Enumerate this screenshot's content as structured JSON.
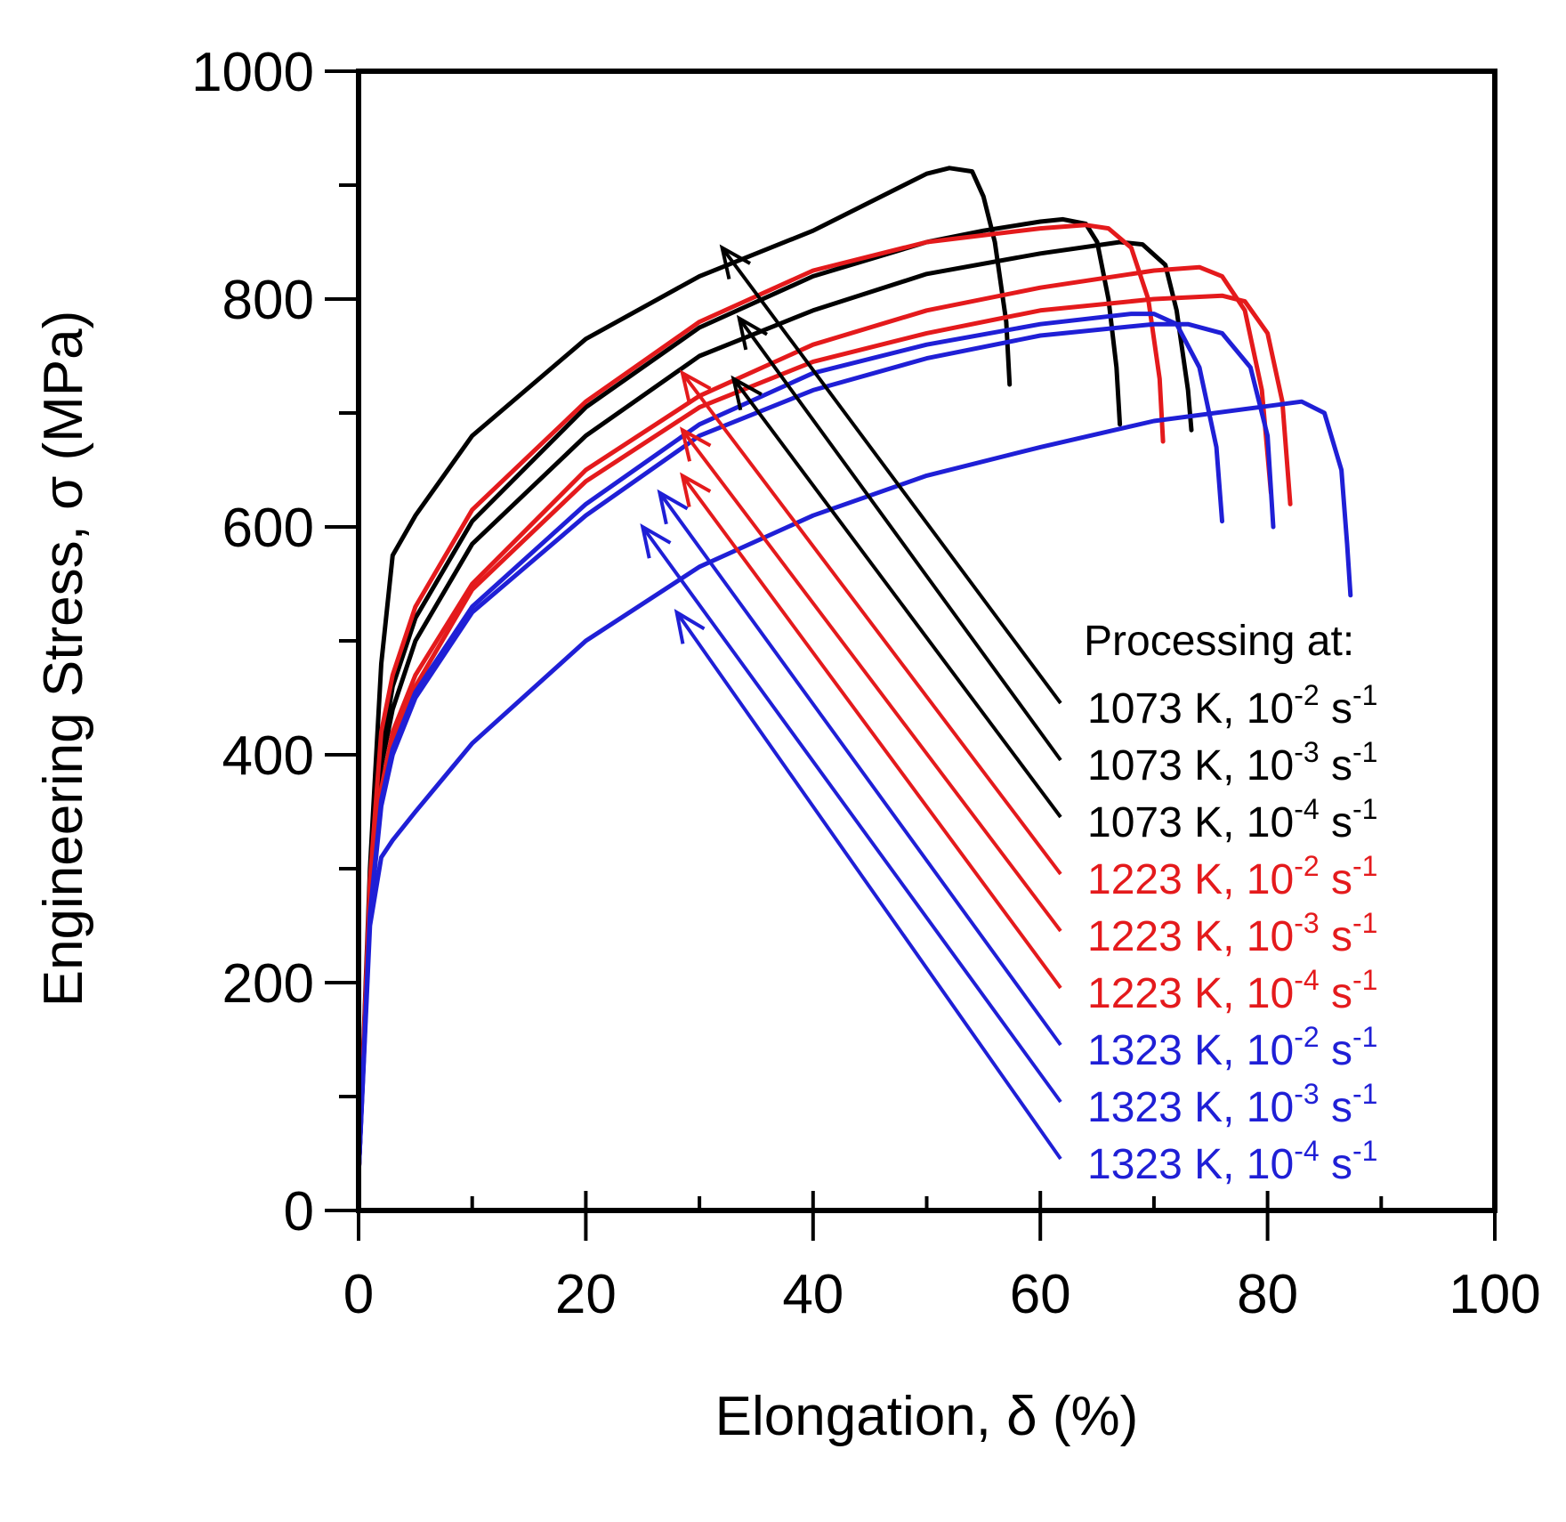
{
  "chart_data": {
    "type": "line",
    "title": "",
    "xlabel": "Elongation, δ (%)",
    "ylabel": "Engineering Stress, σ (MPa)",
    "xlim": [
      0,
      100
    ],
    "ylim": [
      0,
      1000
    ],
    "xticks": [
      0,
      20,
      40,
      60,
      80,
      100
    ],
    "yticks": [
      0,
      200,
      400,
      600,
      800,
      1000
    ],
    "xtick_labels": [
      "0",
      "20",
      "40",
      "60",
      "80",
      "100"
    ],
    "ytick_labels": [
      "0",
      "200",
      "400",
      "600",
      "800",
      "1000"
    ],
    "grid": false,
    "legend_title": "Processing at:",
    "legend_position": "right-center",
    "series": [
      {
        "name": "1073 K, 10-2 s-1",
        "label": {
          "temp": "1073 K, 10",
          "exp": "-2",
          "unit": " s",
          "unit_exp": "-1"
        },
        "color": "#000000",
        "points": [
          [
            0,
            30
          ],
          [
            1,
            300
          ],
          [
            2,
            480
          ],
          [
            3,
            575
          ],
          [
            5,
            610
          ],
          [
            10,
            680
          ],
          [
            20,
            765
          ],
          [
            30,
            820
          ],
          [
            40,
            860
          ],
          [
            50,
            910
          ],
          [
            52,
            915
          ],
          [
            54,
            912
          ],
          [
            55,
            890
          ],
          [
            56,
            850
          ],
          [
            57,
            780
          ],
          [
            57.3,
            725
          ]
        ],
        "arrow_tip": [
          32,
          845
        ]
      },
      {
        "name": "1073 K, 10-3 s-1",
        "label": {
          "temp": "1073 K, 10",
          "exp": "-3",
          "unit": " s",
          "unit_exp": "-1"
        },
        "color": "#000000",
        "points": [
          [
            0,
            30
          ],
          [
            1,
            280
          ],
          [
            2,
            400
          ],
          [
            3,
            460
          ],
          [
            5,
            520
          ],
          [
            10,
            605
          ],
          [
            20,
            705
          ],
          [
            30,
            775
          ],
          [
            40,
            820
          ],
          [
            50,
            850
          ],
          [
            55,
            860
          ],
          [
            60,
            868
          ],
          [
            62,
            870
          ],
          [
            64,
            866
          ],
          [
            65,
            850
          ],
          [
            66,
            800
          ],
          [
            66.7,
            740
          ],
          [
            67,
            690
          ]
        ],
        "arrow_tip": [
          33.5,
          783
        ]
      },
      {
        "name": "1073 K, 10-4 s-1",
        "label": {
          "temp": "1073 K, 10",
          "exp": "-4",
          "unit": " s",
          "unit_exp": "-1"
        },
        "color": "#000000",
        "points": [
          [
            0,
            30
          ],
          [
            1,
            270
          ],
          [
            2,
            390
          ],
          [
            3,
            440
          ],
          [
            5,
            500
          ],
          [
            10,
            585
          ],
          [
            20,
            680
          ],
          [
            30,
            750
          ],
          [
            40,
            790
          ],
          [
            50,
            822
          ],
          [
            60,
            840
          ],
          [
            67,
            850
          ],
          [
            69,
            848
          ],
          [
            71,
            830
          ],
          [
            72,
            790
          ],
          [
            73,
            720
          ],
          [
            73.3,
            685
          ]
        ],
        "arrow_tip": [
          33,
          730
        ]
      },
      {
        "name": "1223 K, 10-2 s-1",
        "label": {
          "temp": "1223 K, 10",
          "exp": "-2",
          "unit": " s",
          "unit_exp": "-1"
        },
        "color": "#e41a1c",
        "points": [
          [
            0,
            30
          ],
          [
            1,
            290
          ],
          [
            2,
            420
          ],
          [
            3,
            470
          ],
          [
            5,
            530
          ],
          [
            10,
            615
          ],
          [
            20,
            710
          ],
          [
            30,
            780
          ],
          [
            40,
            825
          ],
          [
            50,
            850
          ],
          [
            60,
            862
          ],
          [
            64,
            865
          ],
          [
            66,
            862
          ],
          [
            68,
            845
          ],
          [
            69.5,
            800
          ],
          [
            70.5,
            730
          ],
          [
            70.8,
            675
          ]
        ],
        "arrow_tip": [
          28.5,
          735
        ]
      },
      {
        "name": "1223 K, 10-3 s-1",
        "label": {
          "temp": "1223 K, 10",
          "exp": "-3",
          "unit": " s",
          "unit_exp": "-1"
        },
        "color": "#e41a1c",
        "points": [
          [
            0,
            30
          ],
          [
            1,
            270
          ],
          [
            2,
            370
          ],
          [
            3,
            420
          ],
          [
            5,
            470
          ],
          [
            10,
            550
          ],
          [
            20,
            650
          ],
          [
            30,
            715
          ],
          [
            40,
            760
          ],
          [
            50,
            790
          ],
          [
            60,
            810
          ],
          [
            70,
            825
          ],
          [
            74,
            828
          ],
          [
            76,
            820
          ],
          [
            78,
            790
          ],
          [
            79.5,
            720
          ],
          [
            80.3,
            630
          ]
        ],
        "arrow_tip": [
          28.5,
          685
        ]
      },
      {
        "name": "1223 K, 10-4 s-1",
        "label": {
          "temp": "1223 K, 10",
          "exp": "-4",
          "unit": " s",
          "unit_exp": "-1"
        },
        "color": "#e41a1c",
        "points": [
          [
            0,
            30
          ],
          [
            1,
            265
          ],
          [
            2,
            360
          ],
          [
            3,
            410
          ],
          [
            5,
            460
          ],
          [
            10,
            545
          ],
          [
            20,
            640
          ],
          [
            30,
            705
          ],
          [
            40,
            745
          ],
          [
            50,
            770
          ],
          [
            60,
            790
          ],
          [
            70,
            800
          ],
          [
            76,
            803
          ],
          [
            78,
            798
          ],
          [
            80,
            770
          ],
          [
            81.3,
            710
          ],
          [
            82,
            620
          ]
        ],
        "arrow_tip": [
          28.5,
          645
        ]
      },
      {
        "name": "1323 K, 10-2 s-1",
        "label": {
          "temp": "1323 K, 10",
          "exp": "-2",
          "unit": " s",
          "unit_exp": "-1"
        },
        "color": "#1f1fd6",
        "points": [
          [
            0,
            30
          ],
          [
            1,
            260
          ],
          [
            2,
            360
          ],
          [
            3,
            405
          ],
          [
            5,
            455
          ],
          [
            10,
            530
          ],
          [
            20,
            620
          ],
          [
            30,
            690
          ],
          [
            40,
            735
          ],
          [
            50,
            760
          ],
          [
            60,
            778
          ],
          [
            68,
            787
          ],
          [
            70,
            787
          ],
          [
            72,
            778
          ],
          [
            74,
            740
          ],
          [
            75.5,
            670
          ],
          [
            76,
            605
          ]
        ],
        "arrow_tip": [
          26.5,
          630
        ]
      },
      {
        "name": "1323 K, 10-3 s-1",
        "label": {
          "temp": "1323 K, 10",
          "exp": "-3",
          "unit": " s",
          "unit_exp": "-1"
        },
        "color": "#1f1fd6",
        "points": [
          [
            0,
            30
          ],
          [
            1,
            258
          ],
          [
            2,
            355
          ],
          [
            3,
            400
          ],
          [
            5,
            450
          ],
          [
            10,
            525
          ],
          [
            20,
            610
          ],
          [
            30,
            680
          ],
          [
            40,
            720
          ],
          [
            50,
            748
          ],
          [
            60,
            768
          ],
          [
            70,
            778
          ],
          [
            73,
            778
          ],
          [
            76,
            770
          ],
          [
            78.5,
            740
          ],
          [
            80,
            680
          ],
          [
            80.5,
            600
          ]
        ],
        "arrow_tip": [
          25,
          600
        ]
      },
      {
        "name": "1323 K, 10-4 s-1",
        "label": {
          "temp": "1323 K, 10",
          "exp": "-4",
          "unit": " s",
          "unit_exp": "-1"
        },
        "color": "#1f1fd6",
        "points": [
          [
            0,
            30
          ],
          [
            1,
            250
          ],
          [
            2,
            310
          ],
          [
            3,
            325
          ],
          [
            5,
            350
          ],
          [
            10,
            410
          ],
          [
            20,
            500
          ],
          [
            30,
            565
          ],
          [
            40,
            610
          ],
          [
            50,
            645
          ],
          [
            60,
            670
          ],
          [
            70,
            693
          ],
          [
            80,
            706
          ],
          [
            83,
            710
          ],
          [
            85,
            700
          ],
          [
            86.5,
            650
          ],
          [
            87,
            585
          ],
          [
            87.3,
            540
          ]
        ],
        "arrow_tip": [
          28,
          525
        ]
      }
    ]
  }
}
